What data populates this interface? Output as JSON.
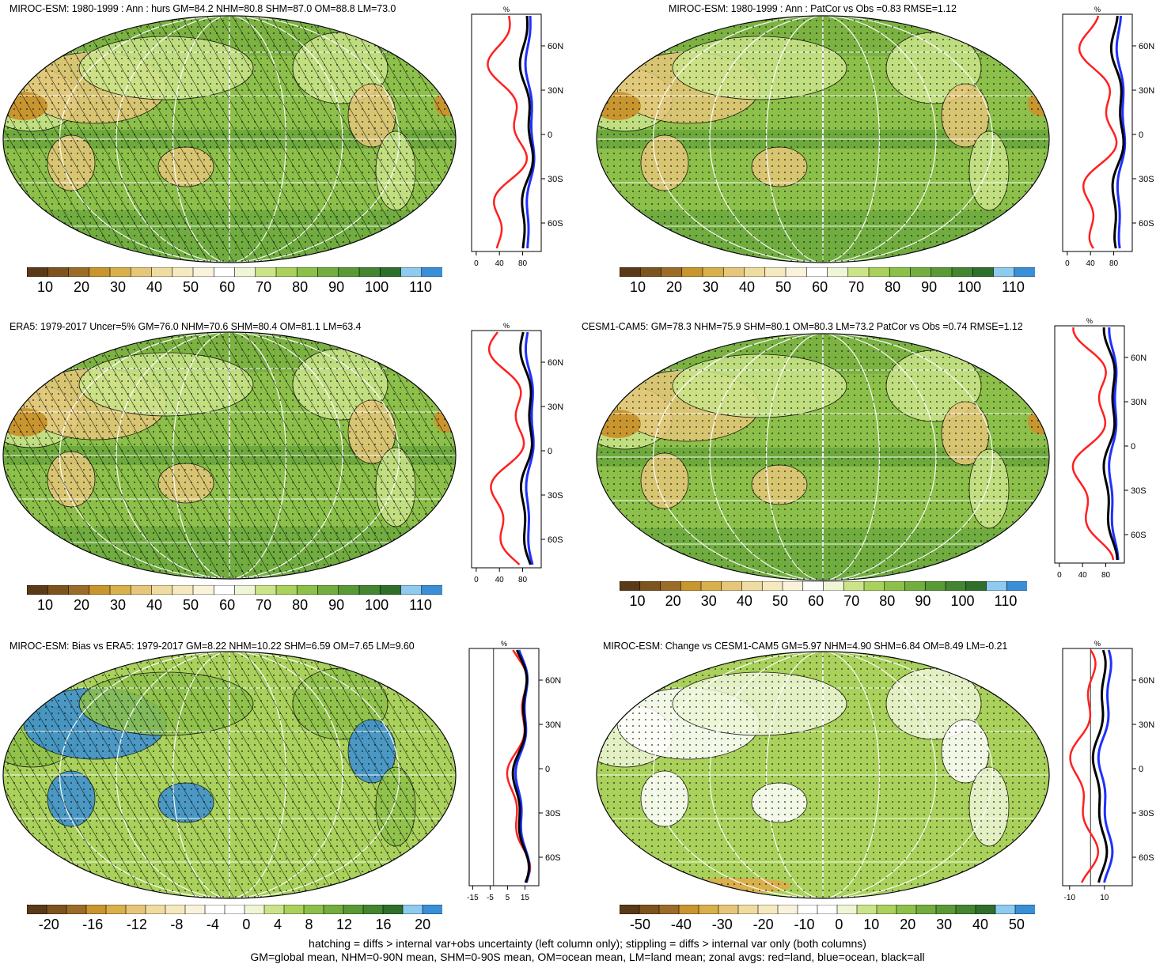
{
  "panels": [
    {
      "title": "MIROC-ESM: 1980-1999 : Ann : hurs GM=84.2 NHM=80.8 SHM=87.0 OM=88.8 LM=73.0",
      "type": "abs",
      "hatched": true,
      "cb_labels": [
        "10",
        "20",
        "30",
        "40",
        "50",
        "60",
        "70",
        "80",
        "90",
        "100",
        "110"
      ],
      "prof_xticks": [
        "0",
        "40",
        "80"
      ],
      "prof_unit": "%",
      "lat_ticks": [
        "60N",
        "30N",
        "0",
        "30S",
        "60S"
      ]
    },
    {
      "title": "MIROC-ESM: 1980-1999 : Ann : PatCor vs Obs =0.83 RMSE=1.12",
      "type": "abs",
      "hatched": false,
      "cb_labels": [
        "10",
        "20",
        "30",
        "40",
        "50",
        "60",
        "70",
        "80",
        "90",
        "100",
        "110"
      ],
      "prof_xticks": [
        "0",
        "40",
        "80"
      ],
      "prof_unit": "%",
      "lat_ticks": [
        "60N",
        "30N",
        "0",
        "30S",
        "60S"
      ]
    },
    {
      "title": "ERA5: 1979-2017 Uncer=5% GM=76.0 NHM=70.6 SHM=80.4 OM=81.1 LM=63.4",
      "type": "abs",
      "hatched": true,
      "cb_labels": [
        "10",
        "20",
        "30",
        "40",
        "50",
        "60",
        "70",
        "80",
        "90",
        "100",
        "110"
      ],
      "prof_xticks": [
        "0",
        "40",
        "80"
      ],
      "prof_unit": "%",
      "lat_ticks": [
        "60N",
        "30N",
        "0",
        "30S",
        "60S"
      ]
    },
    {
      "title": "CESM1-CAM5: GM=78.3 NHM=75.9 SHM=80.1 OM=80.3 LM=73.2 PatCor vs Obs =0.74 RMSE=1.12",
      "type": "abs",
      "hatched": false,
      "cb_labels": [
        "10",
        "20",
        "30",
        "40",
        "50",
        "60",
        "70",
        "80",
        "90",
        "100",
        "110"
      ],
      "prof_xticks": [
        "0",
        "40",
        "80"
      ],
      "prof_unit": "%",
      "lat_ticks": [
        "60N",
        "30N",
        "0",
        "30S",
        "60S"
      ]
    },
    {
      "title": "MIROC-ESM: Bias vs ERA5: 1979-2017 GM=8.22 NHM=10.22 SHM=6.59 OM=7.65 LM=9.60",
      "type": "bias",
      "hatched": true,
      "cb_labels": [
        "-20",
        "-16",
        "-12",
        "-8",
        "-4",
        "0",
        "4",
        "8",
        "12",
        "16",
        "20"
      ],
      "prof_xticks": [
        "-15",
        "-5",
        "5",
        "15"
      ],
      "prof_unit": "%",
      "lat_ticks": [
        "60N",
        "30N",
        "0",
        "30S",
        "60S"
      ]
    },
    {
      "title": "MIROC-ESM: Change vs CESM1-CAM5 GM=5.97 NHM=4.90 SHM=6.84 OM=8.49 LM=-0.21",
      "type": "change",
      "hatched": false,
      "cb_labels": [
        "-50",
        "-40",
        "-30",
        "-20",
        "-10",
        "0",
        "10",
        "20",
        "30",
        "40",
        "50"
      ],
      "prof_xticks": [
        "-10",
        "10"
      ],
      "prof_unit": "%",
      "lat_ticks": [
        "60N",
        "30N",
        "0",
        "30S",
        "60S"
      ]
    }
  ],
  "footer": {
    "line1": "hatching = diffs > internal var+obs uncertainty (left column only); stippling = diffs > internal var only (both columns)",
    "line2": "GM=global mean, NHM=0-90N mean, SHM=0-90S mean, OM=ocean mean, LM=land mean; zonal avgs: red=land, blue=ocean, black=all"
  },
  "colors": {
    "abs_scale": [
      "#5b3a17",
      "#7d5320",
      "#9b6b2a",
      "#c8952e",
      "#d8b04c",
      "#e6c67a",
      "#efdca0",
      "#f5e9c0",
      "#f9f3dc",
      "#ffffff",
      "#eef6d6",
      "#cbe48a",
      "#a9d15b",
      "#8cc04a",
      "#73ad3f",
      "#5a9a36",
      "#438530",
      "#2f6f2a",
      "#8ecbef",
      "#3a8fd6"
    ],
    "diff_scale": [
      "#5b3a17",
      "#7d5320",
      "#9b6b2a",
      "#c8952e",
      "#d8b04c",
      "#e6c67a",
      "#efdca0",
      "#f5e9c0",
      "#f9f3dc",
      "#ffffff",
      "#ffffff",
      "#eef6d6",
      "#cbe48a",
      "#a9d15b",
      "#8cc04a",
      "#73ad3f",
      "#5a9a36",
      "#438530",
      "#2f6f2a",
      "#8ecbef",
      "#3a8fd6"
    ],
    "land_line": "#ff2020",
    "ocean_line": "#2030ff",
    "all_line": "#000000"
  }
}
